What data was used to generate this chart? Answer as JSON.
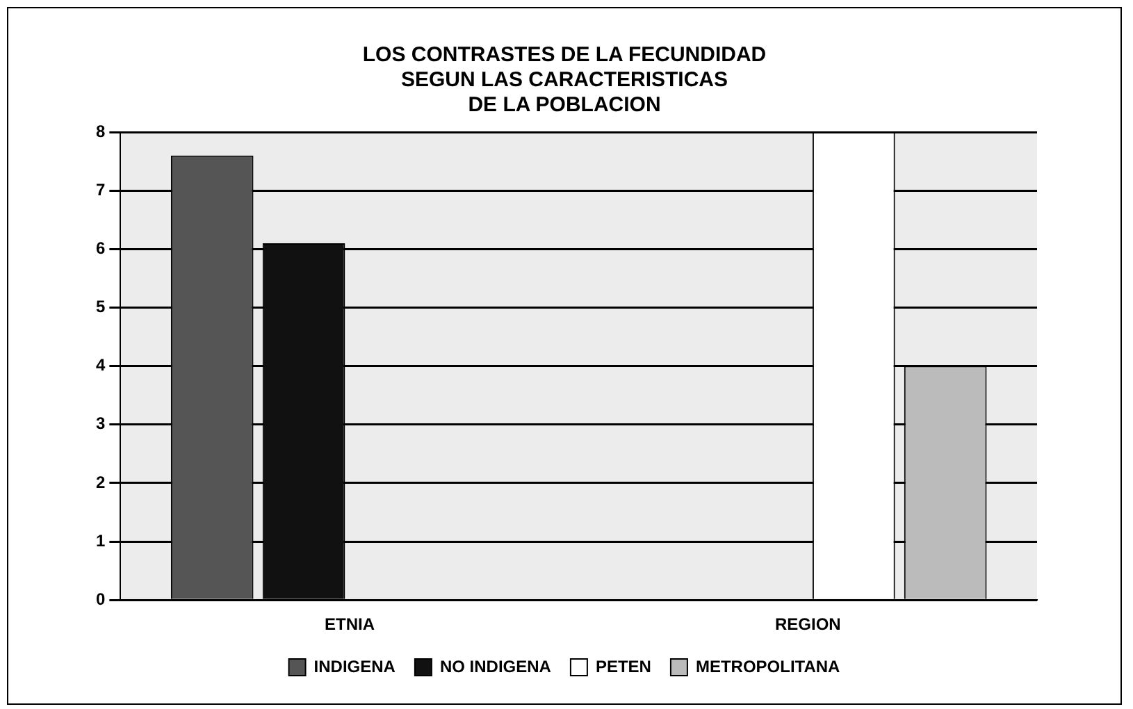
{
  "chart_data": {
    "type": "bar",
    "title": [
      "LOS CONTRASTES DE LA FECUNDIDAD",
      "SEGUN LAS CARACTERISTICAS",
      "DE LA POBLACION"
    ],
    "categories": [
      "ETNIA",
      "REGION"
    ],
    "series": [
      {
        "name": "INDIGENA",
        "color": "#555555",
        "values": [
          7.6,
          null
        ]
      },
      {
        "name": "NO INDIGENA",
        "color": "#111111",
        "values": [
          6.1,
          null
        ]
      },
      {
        "name": "PETEN",
        "color": "#ffffff",
        "values": [
          null,
          8.0
        ]
      },
      {
        "name": "METROPOLITANA",
        "color": "#bbbbbb",
        "values": [
          null,
          4.0
        ]
      }
    ],
    "ylim": [
      0,
      8
    ],
    "yticks": [
      0,
      1,
      2,
      3,
      4,
      5,
      6,
      7,
      8
    ],
    "grid": "y",
    "legend": "bottom"
  }
}
